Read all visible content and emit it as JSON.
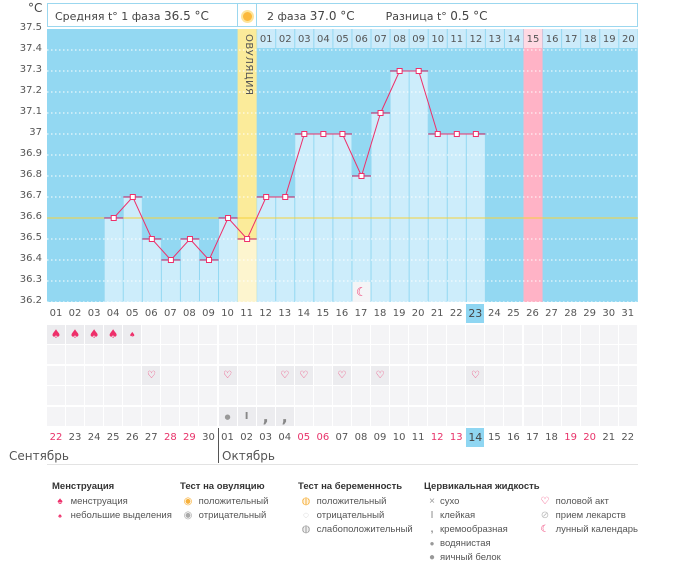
{
  "header": {
    "unit": "°C",
    "phase1_label": "Средняя t° 1 фаза",
    "phase1_value": "36.5 °C",
    "phase2_label": "2 фаза",
    "phase2_value": "37.0 °C",
    "diff_label": "Разница t°",
    "diff_value": "0.5 °C",
    "ovulation_label": "ОВУЛЯЦИЯ"
  },
  "colors": {
    "sky": "#93d8f2",
    "bar": "#cdedfb",
    "line": "#ee2f6a",
    "ovulation": "#fbeb9a",
    "highlight": "#ffb3c6",
    "coverline": "#f5d23c",
    "today": "#8fd6f2"
  },
  "chart_data": {
    "type": "line",
    "ylim": [
      36.2,
      37.5
    ],
    "yticks": [
      "37.5",
      "37.4",
      "37.3",
      "37.2",
      "37.1",
      "37",
      "36.9",
      "36.8",
      "36.7",
      "36.6",
      "36.5",
      "36.4",
      "36.3",
      "36.2"
    ],
    "cycle_days": [
      "01",
      "02",
      "03",
      "04",
      "05",
      "06",
      "07",
      "08",
      "09",
      "10",
      "11",
      "12",
      "13",
      "14",
      "15",
      "16",
      "17",
      "18",
      "19",
      "20",
      "21",
      "22",
      "23",
      "24",
      "25",
      "26",
      "27",
      "28",
      "29",
      "30",
      "31"
    ],
    "temperatures": [
      null,
      null,
      null,
      36.6,
      36.7,
      36.5,
      36.4,
      36.5,
      36.4,
      36.6,
      36.5,
      36.7,
      36.7,
      37.0,
      37.0,
      37.0,
      36.8,
      37.1,
      37.3,
      37.3,
      37.0,
      37.0,
      37.0,
      null,
      null,
      null,
      null,
      null,
      null,
      null,
      null
    ],
    "coverline": 36.6,
    "ovulation_day": 11,
    "highlighted_day": 26,
    "post_ovulation_labels": [
      "01",
      "02",
      "03",
      "04",
      "05",
      "06",
      "07",
      "08",
      "09",
      "10",
      "11",
      "12",
      "13",
      "14",
      "15",
      "16",
      "17",
      "18",
      "19",
      "20"
    ],
    "moon_day": 17
  },
  "current_cycle_day": "23",
  "calendar": {
    "dates": [
      "22",
      "23",
      "24",
      "25",
      "26",
      "27",
      "28",
      "29",
      "30",
      "01",
      "02",
      "03",
      "04",
      "05",
      "06",
      "07",
      "08",
      "09",
      "10",
      "11",
      "12",
      "13",
      "14",
      "15",
      "16",
      "17",
      "18",
      "19",
      "20",
      "21",
      "22"
    ],
    "weekend_indexes": [
      0,
      6,
      7,
      13,
      14,
      20,
      21,
      27,
      28
    ],
    "today_index": 22,
    "months": [
      "Сентябрь",
      "Октябрь"
    ]
  },
  "rows": {
    "menstruation": {
      "heavy": [
        1,
        2,
        3,
        4
      ],
      "light": [
        5
      ]
    },
    "sex": [
      6,
      10,
      13,
      14,
      16,
      18,
      23
    ],
    "cervical": {
      "10": "watery",
      "11": "sticky",
      "12": "creamy",
      "13": "creamy"
    }
  },
  "legend": {
    "menstruation": {
      "title": "Менструация",
      "items": [
        "менструация",
        "небольшие выделения"
      ]
    },
    "ovulation_test": {
      "title": "Тест на овуляцию",
      "items": [
        "положительный",
        "отрицательный"
      ]
    },
    "pregnancy_test": {
      "title": "Тест на беременность",
      "items": [
        "положительный",
        "отрицательный",
        "слабоположительный"
      ]
    },
    "cervical": {
      "title": "Цервикальная жидкость",
      "items": [
        "сухо",
        "клейкая",
        "кремообразная",
        "водянистая",
        "яичный белок"
      ]
    },
    "other": {
      "items": [
        "половой акт",
        "прием лекарств",
        "лунный календарь"
      ]
    }
  }
}
